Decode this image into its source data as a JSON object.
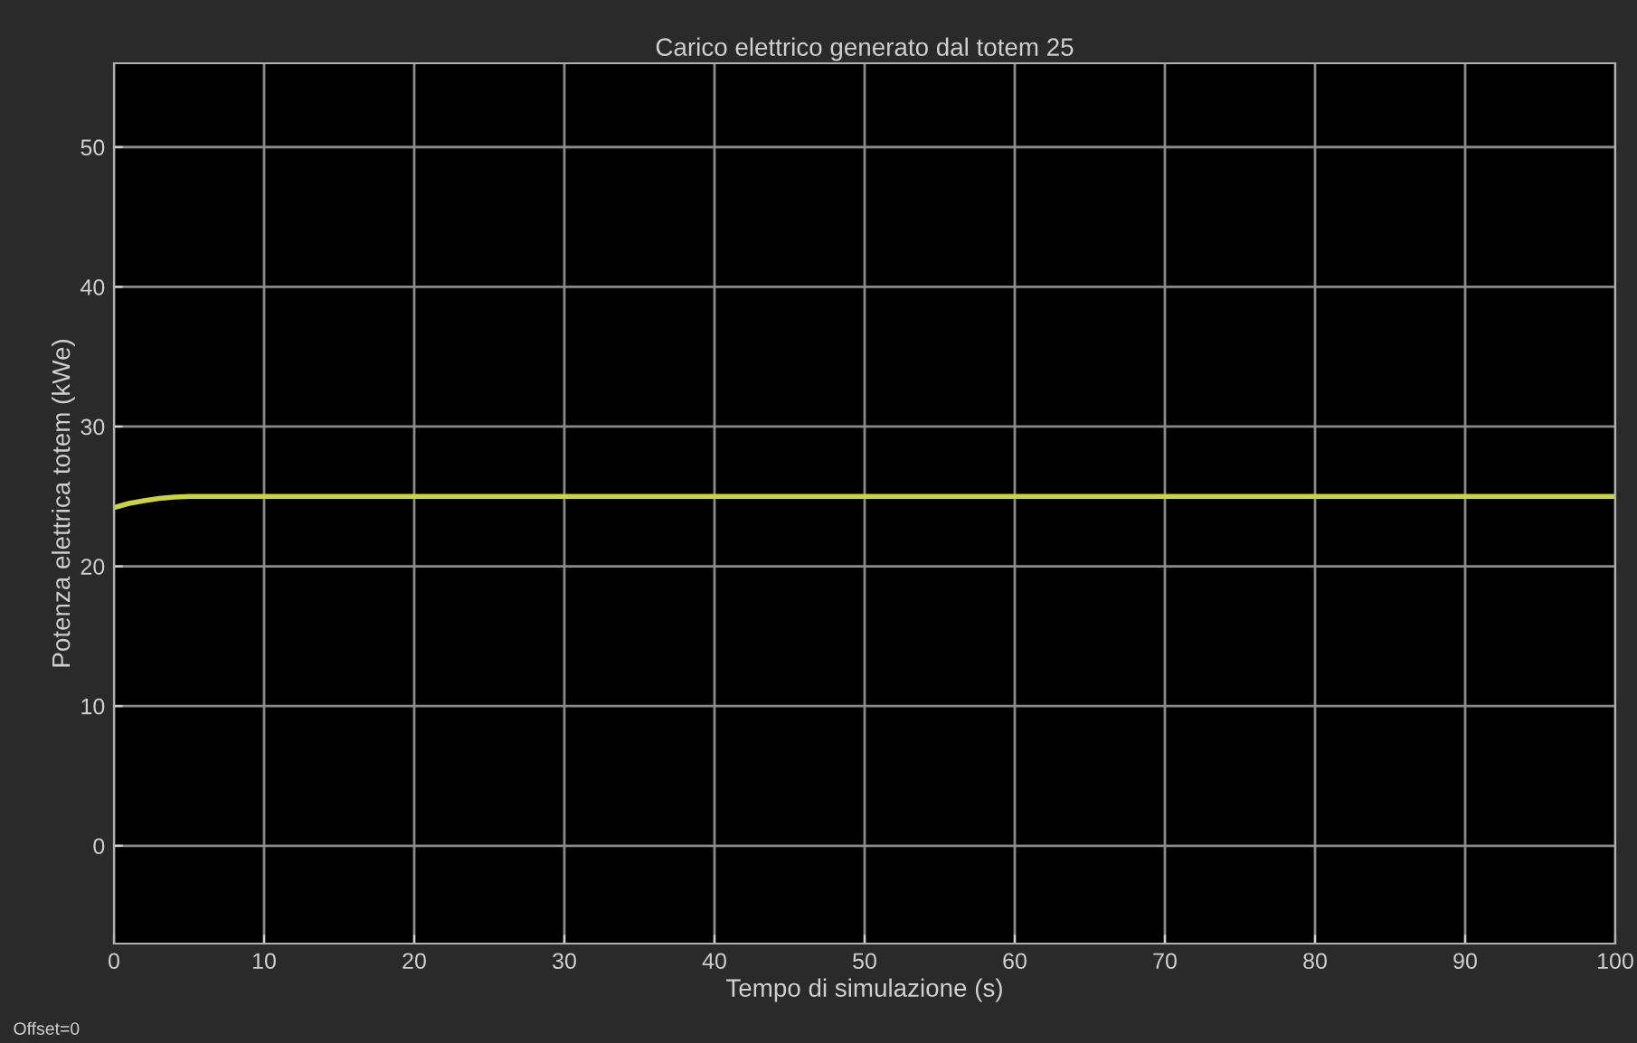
{
  "chart_data": {
    "type": "line",
    "title": "Carico elettrico generato dal totem 25",
    "xlabel": "Tempo di simulazione (s)",
    "ylabel": "Potenza elettrica totem (kWe)",
    "x": [
      0,
      1,
      2,
      3,
      4,
      5,
      6,
      8,
      10,
      20,
      40,
      60,
      80,
      100
    ],
    "series": [
      {
        "color": "#c8d24a",
        "values": [
          24.2,
          24.5,
          24.7,
          24.85,
          24.95,
          25,
          25,
          25,
          25,
          25,
          25,
          25,
          25,
          25
        ]
      }
    ],
    "xlim": [
      0,
      100
    ],
    "xticks": [
      0,
      10,
      20,
      30,
      40,
      50,
      60,
      70,
      80,
      90,
      100
    ],
    "ylim": [
      -7,
      56
    ],
    "yticks": [
      0,
      10,
      20,
      30,
      40,
      50
    ],
    "grid": true,
    "line_style": "solid",
    "marker": "none",
    "annotations": [
      "Offset=0"
    ]
  }
}
